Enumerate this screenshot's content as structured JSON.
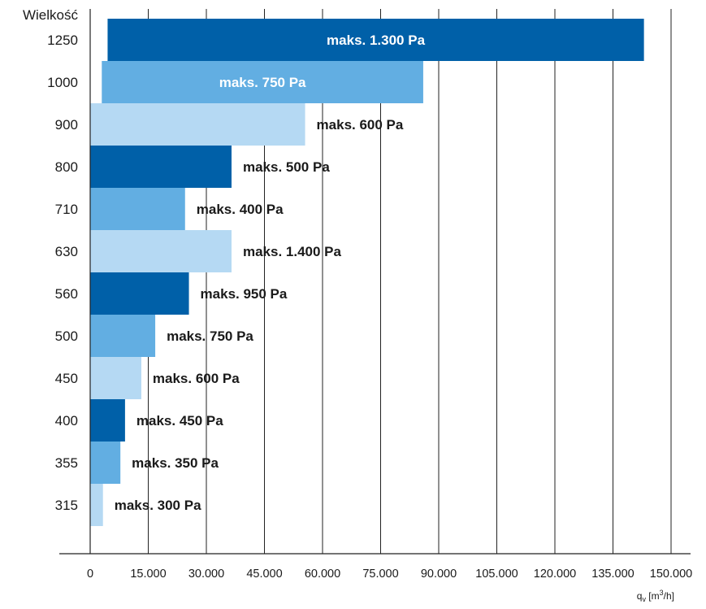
{
  "chart_data": {
    "type": "bar",
    "orientation": "horizontal",
    "ylabel": "Wielkość",
    "xlabel": {
      "base": "q",
      "subscript": "v",
      "unit_before": " [m",
      "unit_sup": "3",
      "unit_after": "/h]"
    },
    "xlim": [
      0,
      150000
    ],
    "x_ticks": [
      0,
      15000,
      30000,
      45000,
      60000,
      75000,
      90000,
      105000,
      120000,
      135000,
      150000
    ],
    "x_tick_labels": [
      "0",
      "15.000",
      "30.000",
      "45.000",
      "60.000",
      "75.000",
      "90.000",
      "105.000",
      "120.000",
      "135.000",
      "150.000"
    ],
    "grid": "vertical",
    "categories": [
      "1250",
      "1000",
      "900",
      "800",
      "710",
      "630",
      "560",
      "500",
      "450",
      "400",
      "355",
      "315"
    ],
    "bars": [
      {
        "category": "1250",
        "start": 4500,
        "value": 143000,
        "label": "maks. 1.300 Pa",
        "color": "#0060a8",
        "label_color": "#ffffff",
        "label_inside": true
      },
      {
        "category": "1000",
        "start": 3000,
        "value": 86000,
        "label": "maks. 750 Pa",
        "color": "#62aee2",
        "label_color": "#ffffff",
        "label_inside": true
      },
      {
        "category": "900",
        "start": 0,
        "value": 55500,
        "label": "maks. 600 Pa",
        "color": "#b5d9f3",
        "label_color": "#1a1a1a",
        "label_inside": false
      },
      {
        "category": "800",
        "start": 0,
        "value": 36500,
        "label": "maks. 500 Pa",
        "color": "#0060a8",
        "label_color": "#1a1a1a",
        "label_inside": false
      },
      {
        "category": "710",
        "start": 0,
        "value": 24500,
        "label": "maks. 400 Pa",
        "color": "#62aee2",
        "label_color": "#1a1a1a",
        "label_inside": false
      },
      {
        "category": "630",
        "start": 0,
        "value": 36500,
        "label": "maks. 1.400 Pa",
        "color": "#b5d9f3",
        "label_color": "#1a1a1a",
        "label_inside": false
      },
      {
        "category": "560",
        "start": 0,
        "value": 25500,
        "label": "maks. 950 Pa",
        "color": "#0060a8",
        "label_color": "#1a1a1a",
        "label_inside": false
      },
      {
        "category": "500",
        "start": 0,
        "value": 16800,
        "label": "maks. 750 Pa",
        "color": "#62aee2",
        "label_color": "#1a1a1a",
        "label_inside": false
      },
      {
        "category": "450",
        "start": 0,
        "value": 13200,
        "label": "maks. 600 Pa",
        "color": "#b5d9f3",
        "label_color": "#1a1a1a",
        "label_inside": false
      },
      {
        "category": "400",
        "start": 0,
        "value": 9000,
        "label": "maks. 450 Pa",
        "color": "#0060a8",
        "label_color": "#1a1a1a",
        "label_inside": false
      },
      {
        "category": "355",
        "start": 0,
        "value": 7800,
        "label": "maks. 350 Pa",
        "color": "#62aee2",
        "label_color": "#1a1a1a",
        "label_inside": false
      },
      {
        "category": "315",
        "start": 0,
        "value": 3300,
        "label": "maks. 300 Pa",
        "color": "#b5d9f3",
        "label_color": "#1a1a1a",
        "label_inside": false
      }
    ]
  }
}
